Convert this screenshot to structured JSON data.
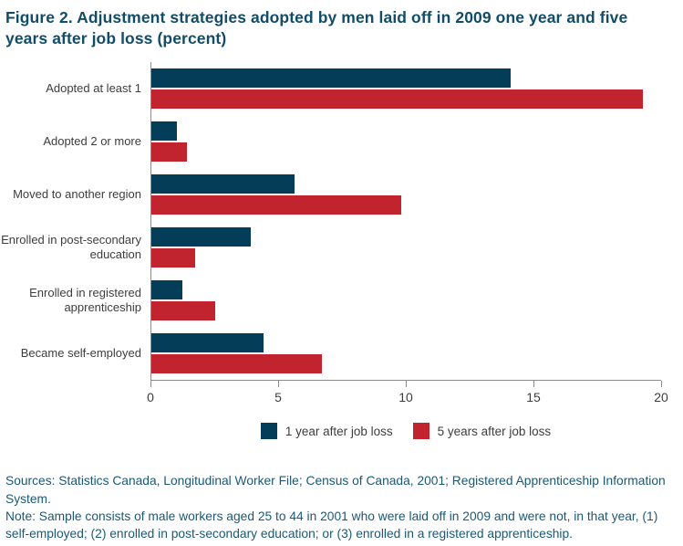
{
  "figure": {
    "title": "Figure 2. Adjustment strategies adopted by men laid off in 2009 one year and five years after job loss (percent)"
  },
  "chart_data": {
    "type": "bar",
    "orientation": "horizontal",
    "title": "Figure 2. Adjustment strategies adopted by men laid off in 2009 one year and five years after job loss (percent)",
    "categories": [
      "Adopted at least 1",
      "Adopted 2 or more",
      "Moved to another region",
      "Enrolled in post-secondary education",
      "Enrolled in registered apprenticeship",
      "Became self-employed"
    ],
    "series": [
      {
        "name": "1 year after job loss",
        "color": "#043d58",
        "values": [
          14.1,
          1.0,
          5.6,
          3.9,
          1.2,
          4.4
        ]
      },
      {
        "name": "5 years after job loss",
        "color": "#c2242f",
        "values": [
          19.3,
          1.4,
          9.8,
          1.7,
          2.5,
          6.7
        ]
      }
    ],
    "xlabel": "",
    "ylabel": "",
    "xlim": [
      0,
      20
    ],
    "x_ticks": [
      0,
      5,
      10,
      15,
      20
    ],
    "grid": false,
    "legend_position": "bottom-center"
  },
  "colors": {
    "series_1_year": "#043d58",
    "series_5_years": "#c2242f",
    "title_text": "#114d68",
    "footer_text": "#1a5976",
    "axis_line": "#8c8c8c",
    "label_text": "#3d3d3d"
  },
  "footer": {
    "sources_line": "Sources: Statistics Canada, Longitudinal Worker File; Census of Canada, 2001; Registered Apprenticeship Information System.",
    "note_line": "Note: Sample consists of male workers aged 25 to 44 in 2001 who were laid off in 2009 and were not, in that year, (1) self-employed; (2) enrolled in post-secondary education; or (3) enrolled in a registered apprenticeship."
  }
}
